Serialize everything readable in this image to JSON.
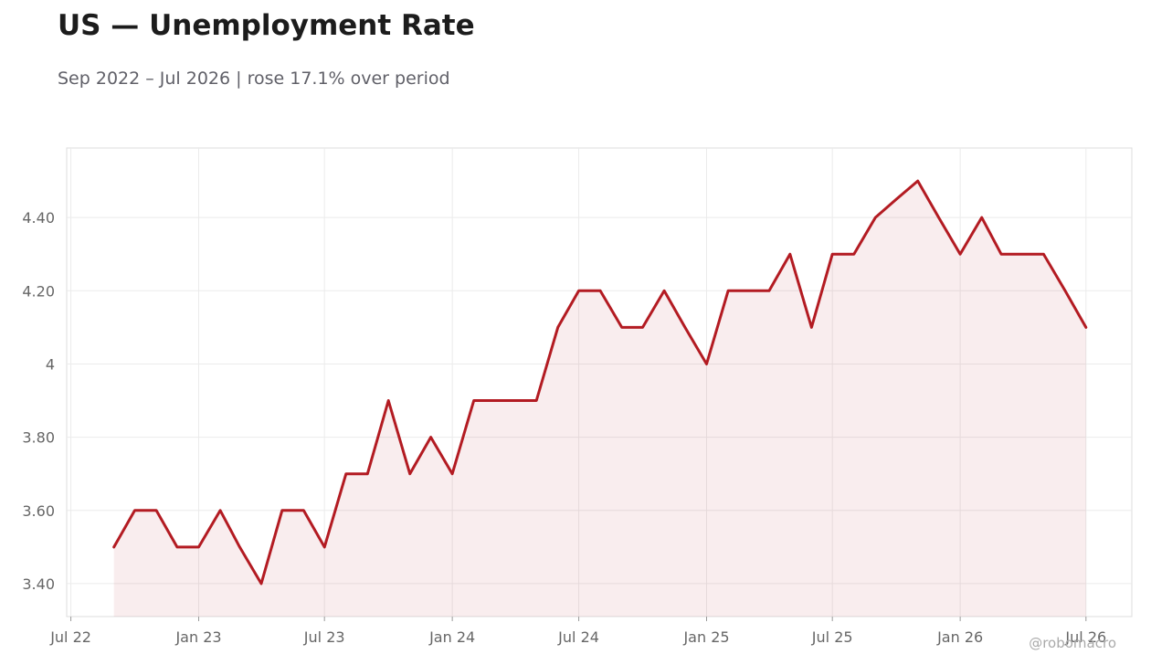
{
  "header": {
    "title": "US — Unemployment Rate",
    "subtitle": "Sep 2022 – Jul 2026 | rose 17.1% over period"
  },
  "footer": {
    "credit": "@robomacro"
  },
  "colors": {
    "line": "#b31b22",
    "fill": "#b31b22",
    "grid": "#ebebeb",
    "frame": "#dddddd",
    "text": "#666666"
  },
  "chart_data": {
    "type": "area",
    "title": "US — Unemployment Rate",
    "subtitle": "Sep 2022 – Jul 2026 | rose 17.1% over period",
    "xlabel": "",
    "ylabel": "",
    "grid": true,
    "legend": "none",
    "x_ticks": [
      "2022-07",
      "2023-01",
      "2023-07",
      "2024-01",
      "2024-07",
      "2025-01",
      "2025-07",
      "2026-01",
      "2026-07"
    ],
    "x_tick_labels": [
      "Jul 22",
      "Jan 23",
      "Jul 23",
      "Jan 24",
      "Jul 24",
      "Jan 25",
      "Jul 25",
      "Jan 26",
      "Jul 26"
    ],
    "y_ticks": [
      3.4,
      3.6,
      3.8,
      4.0,
      4.2,
      4.4
    ],
    "y_tick_labels": [
      "3.40",
      "3.60",
      "3.80",
      "4",
      "4.20",
      "4.40"
    ],
    "xlim": [
      "2022-06-25",
      "2026-09-05"
    ],
    "ylim": [
      3.31,
      4.59
    ],
    "x": [
      "2022-09",
      "2022-10",
      "2022-11",
      "2022-12",
      "2023-01",
      "2023-02",
      "2023-03",
      "2023-04",
      "2023-05",
      "2023-06",
      "2023-07",
      "2023-08",
      "2023-09",
      "2023-10",
      "2023-11",
      "2023-12",
      "2024-01",
      "2024-02",
      "2024-03",
      "2024-04",
      "2024-05",
      "2024-06",
      "2024-07",
      "2024-08",
      "2024-09",
      "2024-10",
      "2024-11",
      "2024-12",
      "2025-01",
      "2025-02",
      "2025-03",
      "2025-04",
      "2025-05",
      "2025-06",
      "2025-07",
      "2025-08",
      "2025-09",
      "2025-10",
      "2025-11",
      "2025-12",
      "2026-01",
      "2026-02",
      "2026-03",
      "2026-04",
      "2026-05",
      "2026-06",
      "2026-07"
    ],
    "values": [
      3.5,
      3.6,
      3.6,
      3.5,
      3.5,
      3.6,
      3.5,
      3.4,
      3.6,
      3.6,
      3.5,
      3.7,
      3.7,
      3.9,
      3.7,
      3.8,
      3.7,
      3.9,
      3.9,
      3.9,
      3.9,
      4.1,
      4.2,
      4.2,
      4.1,
      4.1,
      4.2,
      4.1,
      4.0,
      4.2,
      4.2,
      4.2,
      4.3,
      4.1,
      4.3,
      4.3,
      4.4,
      4.45,
      4.5,
      4.4,
      4.3,
      4.4,
      4.3,
      4.3,
      4.3,
      4.2,
      4.1
    ]
  }
}
